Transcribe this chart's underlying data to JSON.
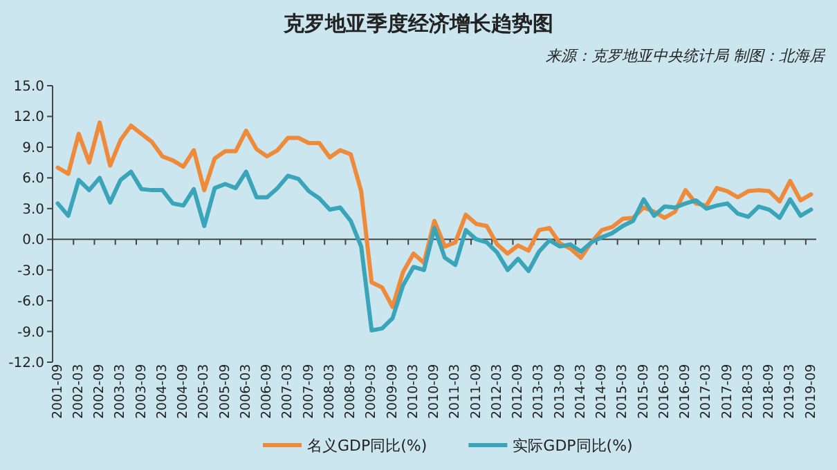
{
  "chart_data": {
    "type": "line",
    "title": "克罗地亚季度经济增长趋势图",
    "annotations": [
      "来源：克罗地亚中央统计局 制图：北海居"
    ],
    "categories": [
      "2001-09",
      null,
      "2002-03",
      null,
      "2002-09",
      null,
      "2003-03",
      null,
      "2003-09",
      null,
      "2004-03",
      null,
      "2004-09",
      null,
      "2005-03",
      null,
      "2005-09",
      null,
      "2006-03",
      null,
      "2006-09",
      null,
      "2007-03",
      null,
      "2007-09",
      null,
      "2008-03",
      null,
      "2008-09",
      null,
      "2009-03",
      null,
      "2009-09",
      null,
      "2010-03",
      null,
      "2010-09",
      null,
      "2011-03",
      null,
      "2011-09",
      null,
      "2012-03",
      null,
      "2012-09",
      null,
      "2013-03",
      null,
      "2013-09",
      null,
      "2014-03",
      null,
      "2014-09",
      null,
      "2015-03",
      null,
      "2015-09",
      null,
      "2016-03",
      null,
      "2016-09",
      null,
      "2017-03",
      null,
      "2017-09",
      null,
      "2018-03",
      null,
      "2018-09",
      null,
      "2019-03",
      null,
      "2019-09"
    ],
    "series": [
      {
        "name": "名义GDP同比(%)",
        "color": "#ee8a3a",
        "values": [
          7.0,
          6.4,
          10.3,
          7.5,
          11.4,
          7.2,
          9.7,
          11.1,
          10.3,
          9.5,
          8.1,
          7.7,
          7.1,
          8.7,
          4.8,
          7.9,
          8.6,
          8.6,
          10.6,
          8.8,
          8.1,
          8.7,
          9.9,
          9.9,
          9.4,
          9.4,
          8.0,
          8.7,
          8.3,
          4.7,
          -4.2,
          -4.7,
          -6.6,
          -3.2,
          -1.4,
          -2.3,
          1.8,
          -0.7,
          -0.3,
          2.4,
          1.5,
          1.3,
          -0.5,
          -1.4,
          -0.6,
          -1.1,
          0.9,
          1.1,
          -0.4,
          -0.9,
          -1.8,
          -0.3,
          0.9,
          1.2,
          2.0,
          2.1,
          3.1,
          2.7,
          2.1,
          2.7,
          4.8,
          3.5,
          3.3,
          5.0,
          4.7,
          4.1,
          4.7,
          4.8,
          4.7,
          3.7,
          5.7,
          3.8,
          4.4
        ]
      },
      {
        "name": "实际GDP同比(%)",
        "color": "#3aa4b8",
        "values": [
          3.5,
          2.3,
          5.8,
          4.8,
          6.0,
          3.6,
          5.8,
          6.6,
          4.9,
          4.8,
          4.8,
          3.5,
          3.3,
          4.9,
          1.3,
          5.0,
          5.4,
          5.0,
          6.6,
          4.1,
          4.1,
          5.0,
          6.2,
          5.9,
          4.7,
          4.0,
          2.9,
          3.1,
          1.8,
          -0.7,
          -8.9,
          -8.7,
          -7.7,
          -4.5,
          -2.7,
          -3.0,
          1.1,
          -1.8,
          -2.5,
          0.9,
          0.0,
          -0.3,
          -1.3,
          -3.0,
          -1.9,
          -3.1,
          -1.2,
          -0.1,
          -0.7,
          -0.5,
          -1.2,
          -0.3,
          0.2,
          0.6,
          1.3,
          1.8,
          3.9,
          2.3,
          3.2,
          3.1,
          3.5,
          3.8,
          3.0,
          3.3,
          3.5,
          2.5,
          2.2,
          3.2,
          2.9,
          2.1,
          3.9,
          2.3,
          2.9
        ]
      }
    ],
    "ylim": [
      -12,
      15
    ],
    "yticks": [
      {
        "value": -12,
        "label": "-12.0"
      },
      {
        "value": -9,
        "label": "-9.0"
      },
      {
        "value": -6,
        "label": "-6.0"
      },
      {
        "value": -3,
        "label": "-3.0"
      },
      {
        "value": 0,
        "label": "0.0"
      },
      {
        "value": 3,
        "label": "3.0"
      },
      {
        "value": 6,
        "label": "6.0"
      },
      {
        "value": 9,
        "label": "9.0"
      },
      {
        "value": 12,
        "label": "12.0"
      },
      {
        "value": 15,
        "label": "15.0"
      }
    ],
    "legend": "bottom",
    "marker": "none",
    "line_style": "solid"
  }
}
